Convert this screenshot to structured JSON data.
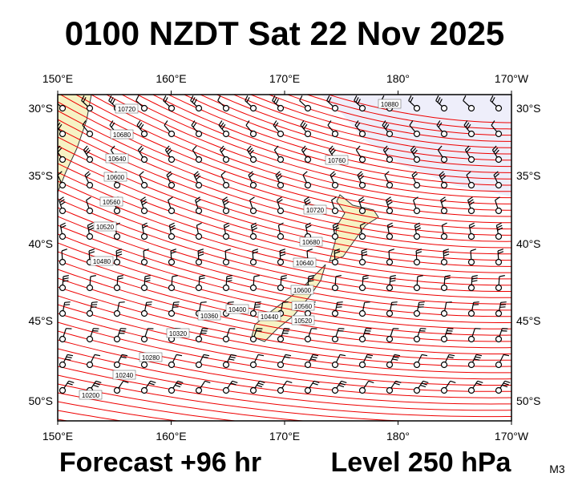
{
  "title": "0100 NZDT Sat 22 Nov 2025",
  "axes": {
    "lon_labels": [
      "150°E",
      "160°E",
      "170°E",
      "180°",
      "170°W"
    ],
    "lat_labels": [
      "30°S",
      "35°S",
      "40°S",
      "45°S",
      "50°S"
    ]
  },
  "contour_labels": [
    "10720",
    "10680",
    "10640",
    "10600",
    "10560",
    "10520",
    "10480",
    "10360",
    "10320",
    "10280",
    "10240",
    "10200",
    "10880",
    "10760",
    "10720",
    "10680",
    "10640",
    "10600",
    "10560",
    "10520",
    "10440",
    "10400"
  ],
  "footer": {
    "forecast": "Forecast +96 hr",
    "level": "Level 250 hPa",
    "model": "M3"
  }
}
